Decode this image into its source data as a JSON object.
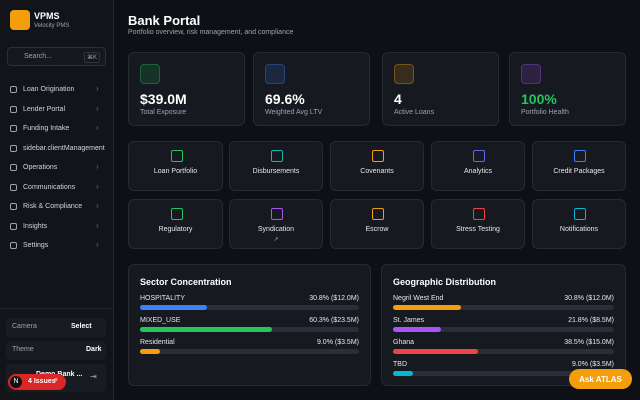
{
  "sidebar": {
    "brand": "VPMS",
    "tagline": "Velocity PMS",
    "search": "Search...",
    "shortcut": "⌘K",
    "nav": [
      "Loan Origination",
      "Lender Portal",
      "Funding Intake",
      "sidebar.clientManagement",
      "Operations",
      "Communications",
      "Risk & Compliance",
      "Insights",
      "Settings"
    ],
    "camera_label": "Camera",
    "camera_value": "Select",
    "theme_label": "Theme",
    "theme_value": "Dark",
    "user": "Demo Bank ...",
    "user_initial": "N",
    "issues": "4 Issues"
  },
  "header": {
    "title": "Bank Portal",
    "subtitle": "Portfolio overview, risk management, and compliance"
  },
  "kpis": [
    {
      "value": "$39.0M",
      "label": "Total Exposure",
      "color": "#22c55e",
      "value_color": "#ffffff"
    },
    {
      "value": "69.6%",
      "label": "Weighted Avg LTV",
      "color": "#3b82f6",
      "value_color": "#ffffff"
    },
    {
      "value": "4",
      "label": "Active Loans",
      "color": "#f59e0b",
      "value_color": "#ffffff"
    },
    {
      "value": "100%",
      "label": "Portfolio Health",
      "color": "#a855f7",
      "value_color": "#22c55e"
    }
  ],
  "tiles": [
    {
      "label": "Loan Portfolio",
      "color": "#22c55e"
    },
    {
      "label": "Disbursements",
      "color": "#14b8a6"
    },
    {
      "label": "Covenants",
      "color": "#f59e0b"
    },
    {
      "label": "Analytics",
      "color": "#6366f1"
    },
    {
      "label": "Credit Packages",
      "color": "#3b82f6"
    },
    {
      "label": "Regulatory",
      "color": "#22c55e"
    },
    {
      "label": "Syndication",
      "color": "#a855f7",
      "sub": "↗"
    },
    {
      "label": "Escrow",
      "color": "#f59e0b"
    },
    {
      "label": "Stress Testing",
      "color": "#ef4444"
    },
    {
      "label": "Notifications",
      "color": "#06b6d4"
    }
  ],
  "sector": {
    "title": "Sector Concentration",
    "items": [
      {
        "name": "HOSPITALITY",
        "value": 30.8,
        "label": "30.8% ($12.0M)",
        "color": "#3b82f6"
      },
      {
        "name": "MIXED_USE",
        "value": 60.3,
        "label": "60.3% ($23.5M)",
        "color": "#22c55e"
      },
      {
        "name": "Residential",
        "value": 9.0,
        "label": "9.0% ($3.5M)",
        "color": "#f59e0b"
      }
    ]
  },
  "geo": {
    "title": "Geographic Distribution",
    "items": [
      {
        "name": "Negril West End",
        "value": 30.8,
        "label": "30.8% ($12.0M)",
        "color": "#f59e0b"
      },
      {
        "name": "St. James",
        "value": 21.8,
        "label": "21.8% ($8.5M)",
        "color": "#a855f7"
      },
      {
        "name": "Ghana",
        "value": 38.5,
        "label": "38.5% ($15.0M)",
        "color": "#ef4444"
      },
      {
        "name": "TBD",
        "value": 9.0,
        "label": "9.0% ($3.5M)",
        "color": "#06b6d4"
      }
    ]
  },
  "assistant": "Ask ATLAS"
}
